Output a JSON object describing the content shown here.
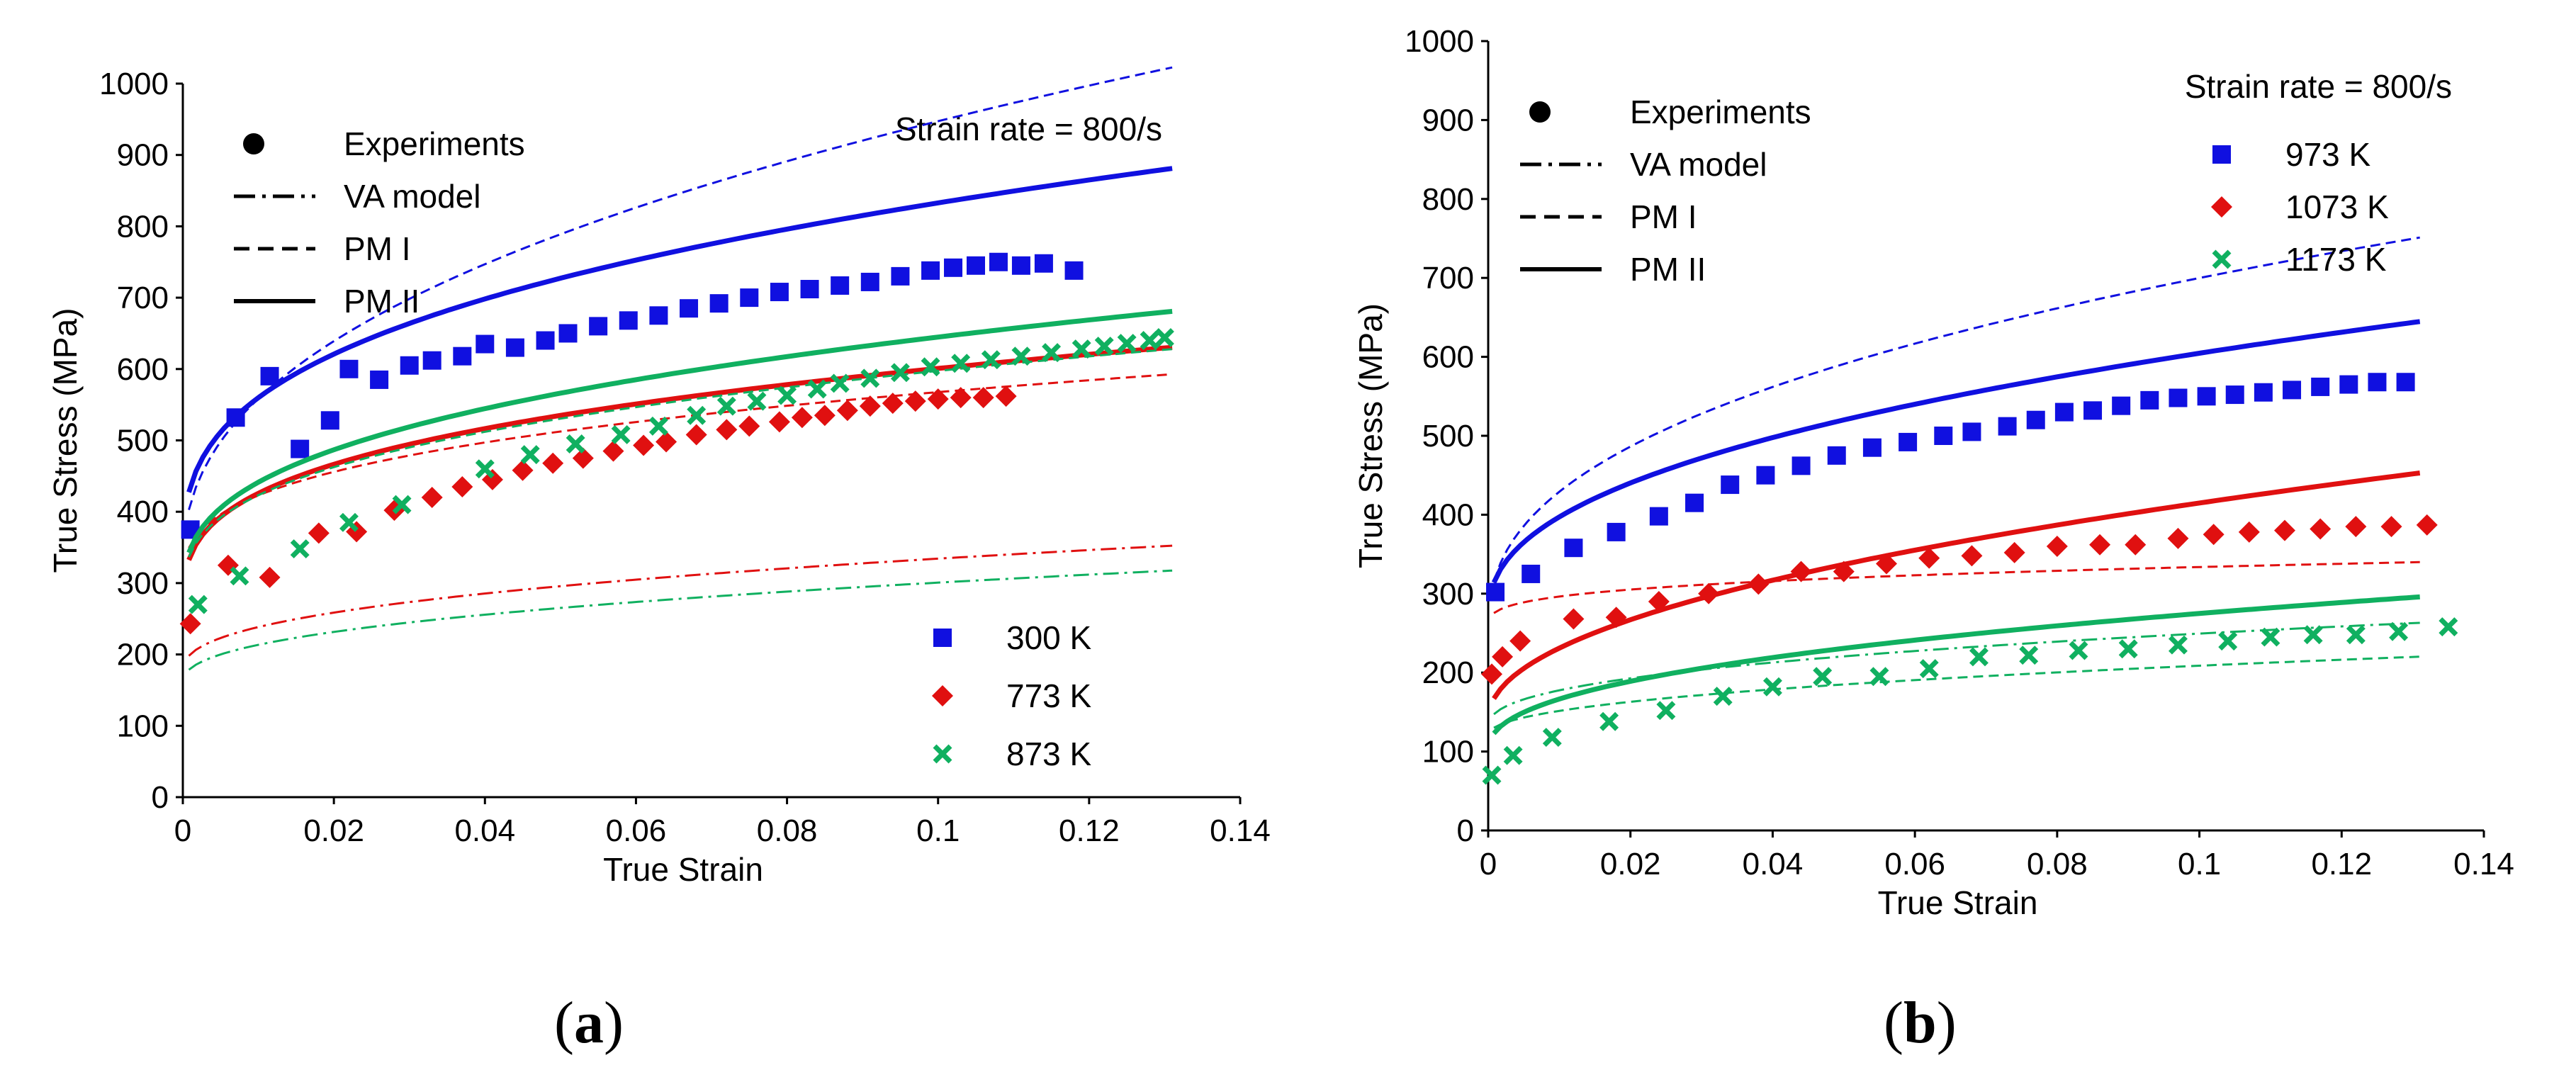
{
  "captions": {
    "a": "a",
    "b": "b"
  },
  "chart_data": [
    {
      "id": "a",
      "type": "scatter",
      "title": "Strain rate = 800/s",
      "xlabel": "True Strain",
      "ylabel": "True Stress (MPa)",
      "xlim": [
        0,
        0.14
      ],
      "ylim": [
        0,
        1000
      ],
      "xticks": [
        0,
        0.02,
        0.04,
        0.06,
        0.08,
        0.1,
        0.12,
        0.14
      ],
      "xticklabels": [
        "0",
        "0.02",
        "0.04",
        "0.06",
        "0.08",
        "0.1",
        "0.12",
        "0.14"
      ],
      "yticks": [
        0,
        100,
        200,
        300,
        400,
        500,
        600,
        700,
        800,
        900,
        1000
      ],
      "yticklabels": [
        "0",
        "100",
        "200",
        "300",
        "400",
        "500",
        "600",
        "700",
        "800",
        "900",
        "1000"
      ],
      "line_legend": [
        {
          "label": "Experiments",
          "style": "dot"
        },
        {
          "label": "VA model",
          "style": "dashdot"
        },
        {
          "label": "PM I",
          "style": "dash"
        },
        {
          "label": "PM II",
          "style": "solid"
        }
      ],
      "legend_position": "bottom-right",
      "series": [
        {
          "name": "300 K",
          "color": "#1010e0",
          "marker": "square",
          "experiments": [
            [
              0.001,
              375
            ],
            [
              0.007,
              532
            ],
            [
              0.0115,
              590
            ],
            [
              0.0155,
              488
            ],
            [
              0.0195,
              528
            ],
            [
              0.022,
              600
            ],
            [
              0.026,
              585
            ],
            [
              0.03,
              605
            ],
            [
              0.033,
              612
            ],
            [
              0.037,
              618
            ],
            [
              0.04,
              635
            ],
            [
              0.044,
              630
            ],
            [
              0.048,
              640
            ],
            [
              0.051,
              650
            ],
            [
              0.055,
              660
            ],
            [
              0.059,
              668
            ],
            [
              0.063,
              675
            ],
            [
              0.067,
              685
            ],
            [
              0.071,
              692
            ],
            [
              0.075,
              700
            ],
            [
              0.079,
              708
            ],
            [
              0.083,
              712
            ],
            [
              0.087,
              717
            ],
            [
              0.091,
              722
            ],
            [
              0.095,
              730
            ],
            [
              0.099,
              738
            ],
            [
              0.102,
              742
            ],
            [
              0.105,
              745
            ],
            [
              0.108,
              750
            ],
            [
              0.111,
              745
            ],
            [
              0.114,
              748
            ],
            [
              0.118,
              738
            ]
          ],
          "va_model": null,
          "pm1": {
            "y0": 320,
            "a": 1650,
            "n": 0.42
          },
          "pm2": {
            "y0": 330,
            "a": 1100,
            "n": 0.34
          }
        },
        {
          "name": "773 K",
          "color": "#e01010",
          "marker": "diamond",
          "experiments": [
            [
              0.001,
              243
            ],
            [
              0.006,
              325
            ],
            [
              0.0115,
              308
            ],
            [
              0.018,
              370
            ],
            [
              0.023,
              372
            ],
            [
              0.028,
              402
            ],
            [
              0.033,
              420
            ],
            [
              0.037,
              435
            ],
            [
              0.041,
              445
            ],
            [
              0.045,
              458
            ],
            [
              0.049,
              468
            ],
            [
              0.053,
              475
            ],
            [
              0.057,
              485
            ],
            [
              0.061,
              493
            ],
            [
              0.064,
              498
            ],
            [
              0.068,
              508
            ],
            [
              0.072,
              515
            ],
            [
              0.075,
              520
            ],
            [
              0.079,
              526
            ],
            [
              0.082,
              532
            ],
            [
              0.085,
              535
            ],
            [
              0.088,
              542
            ],
            [
              0.091,
              548
            ],
            [
              0.094,
              552
            ],
            [
              0.097,
              555
            ],
            [
              0.1,
              558
            ],
            [
              0.103,
              560
            ],
            [
              0.106,
              560
            ],
            [
              0.109,
              562
            ]
          ],
          "va_model": {
            "y0": 175,
            "a": 400,
            "n": 0.4
          },
          "pm1": {
            "y0": 290,
            "a": 580,
            "n": 0.32
          },
          "pm2": {
            "y0": 250,
            "a": 700,
            "n": 0.3
          }
        },
        {
          "name": "873 K",
          "color": "#10b060",
          "marker": "cross",
          "experiments": [
            [
              0.002,
              270
            ],
            [
              0.0075,
              310
            ],
            [
              0.0155,
              348
            ],
            [
              0.022,
              385
            ],
            [
              0.029,
              410
            ],
            [
              0.04,
              460
            ],
            [
              0.046,
              480
            ],
            [
              0.052,
              495
            ],
            [
              0.058,
              508
            ],
            [
              0.063,
              520
            ],
            [
              0.068,
              535
            ],
            [
              0.072,
              548
            ],
            [
              0.076,
              555
            ],
            [
              0.08,
              563
            ],
            [
              0.084,
              572
            ],
            [
              0.087,
              580
            ],
            [
              0.091,
              587
            ],
            [
              0.095,
              595
            ],
            [
              0.099,
              603
            ],
            [
              0.103,
              608
            ],
            [
              0.107,
              613
            ],
            [
              0.111,
              618
            ],
            [
              0.115,
              623
            ],
            [
              0.119,
              628
            ],
            [
              0.122,
              632
            ],
            [
              0.125,
              636
            ],
            [
              0.128,
              640
            ],
            [
              0.13,
              644
            ]
          ],
          "va_model": {
            "y0": 160,
            "a": 370,
            "n": 0.42
          },
          "pm1": {
            "y0": 270,
            "a": 700,
            "n": 0.33
          },
          "pm2": {
            "y0": 270,
            "a": 820,
            "n": 0.34
          }
        }
      ]
    },
    {
      "id": "b",
      "type": "scatter",
      "title": "Strain rate = 800/s",
      "xlabel": "True Strain",
      "ylabel": "True Stress (MPa)",
      "xlim": [
        0,
        0.14
      ],
      "ylim": [
        0,
        1000
      ],
      "xticks": [
        0,
        0.02,
        0.04,
        0.06,
        0.08,
        0.1,
        0.12,
        0.14
      ],
      "xticklabels": [
        "0",
        "0.02",
        "0.04",
        "0.06",
        "0.08",
        "0.1",
        "0.12",
        "0.14"
      ],
      "yticks": [
        0,
        100,
        200,
        300,
        400,
        500,
        600,
        700,
        800,
        900,
        1000
      ],
      "yticklabels": [
        "0",
        "100",
        "200",
        "300",
        "400",
        "500",
        "600",
        "700",
        "800",
        "900",
        "1000"
      ],
      "line_legend": [
        {
          "label": "Experiments",
          "style": "dot"
        },
        {
          "label": "VA model",
          "style": "dashdot"
        },
        {
          "label": "PM I",
          "style": "dash"
        },
        {
          "label": "PM II",
          "style": "solid"
        }
      ],
      "legend_position": "top-right",
      "series": [
        {
          "name": "973 K",
          "color": "#1010e0",
          "marker": "square",
          "experiments": [
            [
              0.001,
              302
            ],
            [
              0.006,
              325
            ],
            [
              0.012,
              358
            ],
            [
              0.018,
              378
            ],
            [
              0.024,
              398
            ],
            [
              0.029,
              415
            ],
            [
              0.034,
              438
            ],
            [
              0.039,
              450
            ],
            [
              0.044,
              462
            ],
            [
              0.049,
              475
            ],
            [
              0.054,
              485
            ],
            [
              0.059,
              492
            ],
            [
              0.064,
              500
            ],
            [
              0.068,
              505
            ],
            [
              0.073,
              512
            ],
            [
              0.077,
              520
            ],
            [
              0.081,
              530
            ],
            [
              0.085,
              532
            ],
            [
              0.089,
              538
            ],
            [
              0.093,
              545
            ],
            [
              0.097,
              548
            ],
            [
              0.101,
              550
            ],
            [
              0.105,
              552
            ],
            [
              0.109,
              555
            ],
            [
              0.113,
              558
            ],
            [
              0.117,
              562
            ],
            [
              0.121,
              565
            ],
            [
              0.125,
              568
            ],
            [
              0.129,
              568
            ]
          ],
          "va_model": null,
          "pm1": {
            "y0": 250,
            "a": 1130,
            "n": 0.4
          },
          "pm2": {
            "y0": 270,
            "a": 880,
            "n": 0.42
          }
        },
        {
          "name": "1073 K",
          "color": "#e01010",
          "marker": "diamond",
          "experiments": [
            [
              0.0005,
              198
            ],
            [
              0.002,
              220
            ],
            [
              0.0045,
              240
            ],
            [
              0.012,
              268
            ],
            [
              0.018,
              270
            ],
            [
              0.024,
              290
            ],
            [
              0.031,
              300
            ],
            [
              0.038,
              312
            ],
            [
              0.044,
              328
            ],
            [
              0.05,
              328
            ],
            [
              0.056,
              338
            ],
            [
              0.062,
              345
            ],
            [
              0.068,
              348
            ],
            [
              0.074,
              352
            ],
            [
              0.08,
              360
            ],
            [
              0.086,
              362
            ],
            [
              0.091,
              362
            ],
            [
              0.097,
              370
            ],
            [
              0.102,
              375
            ],
            [
              0.107,
              378
            ],
            [
              0.112,
              380
            ],
            [
              0.117,
              382
            ],
            [
              0.122,
              385
            ],
            [
              0.127,
              385
            ],
            [
              0.132,
              387
            ]
          ],
          "va_model": null,
          "pm1": {
            "y0": 255,
            "a": 150,
            "n": 0.28
          },
          "pm2": {
            "y0": 140,
            "a": 830,
            "n": 0.48
          }
        },
        {
          "name": "1173 K",
          "color": "#10b060",
          "marker": "cross",
          "experiments": [
            [
              0.0005,
              70
            ],
            [
              0.0035,
              95
            ],
            [
              0.009,
              118
            ],
            [
              0.017,
              138
            ],
            [
              0.025,
              152
            ],
            [
              0.033,
              170
            ],
            [
              0.04,
              182
            ],
            [
              0.047,
              195
            ],
            [
              0.055,
              195
            ],
            [
              0.062,
              205
            ],
            [
              0.069,
              220
            ],
            [
              0.076,
              222
            ],
            [
              0.083,
              228
            ],
            [
              0.09,
              230
            ],
            [
              0.097,
              235
            ],
            [
              0.104,
              240
            ],
            [
              0.11,
              245
            ],
            [
              0.116,
              248
            ],
            [
              0.122,
              248
            ],
            [
              0.128,
              252
            ],
            [
              0.135,
              258
            ]
          ],
          "va_model": {
            "y0": 130,
            "a": 300,
            "n": 0.4
          },
          "pm1": {
            "y0": 120,
            "a": 250,
            "n": 0.45
          },
          "pm2": {
            "y0": 100,
            "a": 460,
            "n": 0.42
          }
        }
      ]
    }
  ]
}
